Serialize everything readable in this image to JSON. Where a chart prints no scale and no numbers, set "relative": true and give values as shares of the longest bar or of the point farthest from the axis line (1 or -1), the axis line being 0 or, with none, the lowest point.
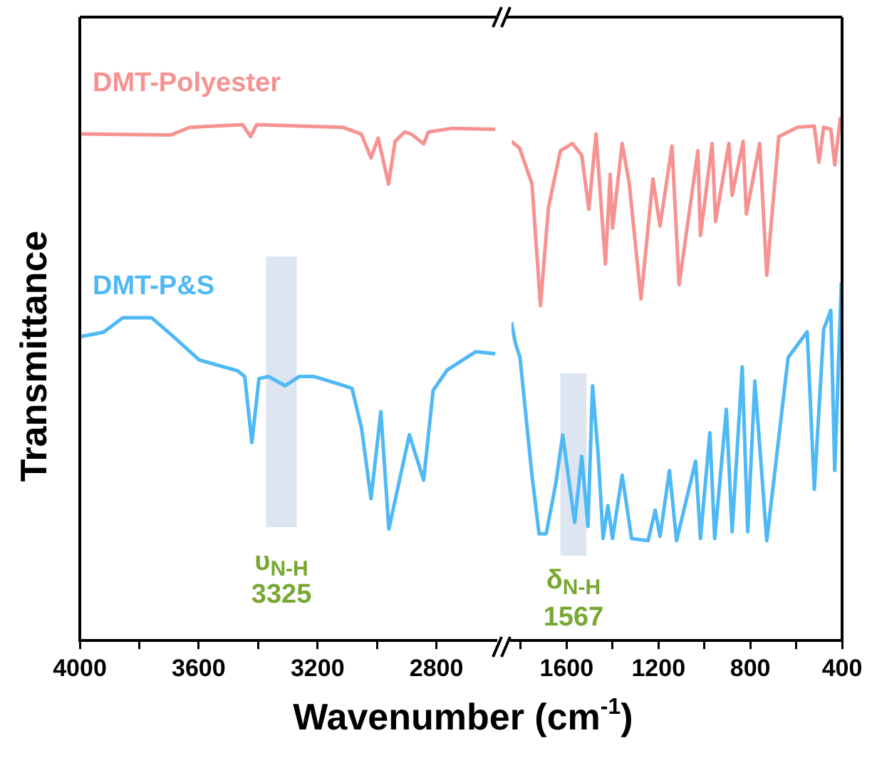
{
  "chart_data": [
    {
      "type": "line",
      "relative": true,
      "ylabel": "Transmittance",
      "xlabel": "Wavenumber (cm$^{-1}$)",
      "xlim": [
        4000,
        2600
      ],
      "xticks": [
        4000,
        {
          "value": 3800,
          "label": null
        },
        3600,
        {
          "value": 3400,
          "label": null
        },
        3200,
        {
          "value": 3000,
          "label": null
        },
        2800
      ],
      "series": [
        {
          "name": "DMT-Polyester",
          "color": "#f79292",
          "x": [
            4000,
            3695,
            3630,
            3452,
            3425,
            3405,
            3116,
            3053,
            3020,
            2996,
            2961,
            2939,
            2907,
            2885,
            2843,
            2827,
            2747,
            2602
          ],
          "values": [
            0.982,
            0.98,
            0.995,
            1,
            0.977,
            1,
            0.995,
            0.982,
            0.936,
            0.974,
            0.885,
            0.968,
            0.986,
            0.982,
            0.963,
            0.986,
            0.993,
            0.991
          ]
        },
        {
          "name": "DMT-P&S",
          "color": "#4fb9f5",
          "x": [
            4000,
            3920,
            3855,
            3759,
            3694,
            3598,
            3469,
            3445,
            3421,
            3397,
            3365,
            3309,
            3261,
            3213,
            3132,
            3084,
            3052,
            3020,
            2987,
            2960,
            2891,
            2843,
            2811,
            2763,
            2667,
            2602
          ],
          "values": [
            0.589,
            0.598,
            0.626,
            0.626,
            0.594,
            0.544,
            0.523,
            0.512,
            0.384,
            0.508,
            0.512,
            0.494,
            0.512,
            0.512,
            0.498,
            0.489,
            0.412,
            0.275,
            0.444,
            0.216,
            0.399,
            0.311,
            0.485,
            0.525,
            0.56,
            0.556
          ]
        }
      ],
      "bands": [
        {
          "axis": "x",
          "from": 3373,
          "to": 3270,
          "color": "#dde5f1"
        }
      ],
      "annotations": [
        "υ$_{N-H}$",
        "3325"
      ]
    },
    {
      "type": "line",
      "relative": true,
      "xlim": [
        1840,
        400
      ],
      "xticks": [
        {
          "value": 1800,
          "label": null
        },
        1600,
        {
          "value": 1400,
          "label": null
        },
        1200,
        {
          "value": 1000,
          "label": null
        },
        800,
        {
          "value": 600,
          "label": null
        },
        400
      ],
      "series": [
        {
          "color": "#f79292",
          "x": [
            1840,
            1805,
            1751,
            1714,
            1679,
            1627,
            1575,
            1534,
            1503,
            1472,
            1431,
            1410,
            1400,
            1358,
            1327,
            1276,
            1224,
            1193,
            1141,
            1110,
            1028,
            1017,
            966,
            951,
            893,
            879,
            831,
            817,
            759,
            728,
            676,
            593,
            521,
            501,
            480,
            449,
            432,
            407
          ],
          "values": [
            0.954,
            0.941,
            0.873,
            0.64,
            0.828,
            0.936,
            0.95,
            0.927,
            0.824,
            0.968,
            0.72,
            0.891,
            0.788,
            0.95,
            0.873,
            0.653,
            0.882,
            0.792,
            0.945,
            0.68,
            0.936,
            0.774,
            0.95,
            0.801,
            0.95,
            0.851,
            0.954,
            0.815,
            0.95,
            0.698,
            0.963,
            0.981,
            0.983,
            0.914,
            0.981,
            0.977,
            0.909,
            1
          ]
        },
        {
          "color": "#4fb9f5",
          "x": [
            1840,
            1823,
            1803,
            1751,
            1720,
            1689,
            1648,
            1617,
            1565,
            1534,
            1507,
            1487,
            1462,
            1441,
            1420,
            1400,
            1358,
            1317,
            1245,
            1214,
            1193,
            1152,
            1121,
            1038,
            1017,
            976,
            955,
            904,
            879,
            835,
            811,
            780,
            728,
            635,
            552,
            521,
            480,
            449,
            432,
            403
          ],
          "values": [
            0.608,
            0.568,
            0.541,
            0.316,
            0.204,
            0.204,
            0.298,
            0.393,
            0.226,
            0.352,
            0.218,
            0.487,
            0.352,
            0.195,
            0.258,
            0.195,
            0.316,
            0.195,
            0.191,
            0.249,
            0.199,
            0.325,
            0.191,
            0.343,
            0.195,
            0.397,
            0.195,
            0.442,
            0.208,
            0.523,
            0.208,
            0.496,
            0.191,
            0.541,
            0.59,
            0.289,
            0.595,
            0.631,
            0.325,
            0.685
          ]
        }
      ],
      "bands": [
        {
          "axis": "x",
          "from": 1627,
          "to": 1513,
          "color": "#dde5f1"
        }
      ],
      "annotations": [
        "δ$_{N-H}$",
        "1567"
      ]
    }
  ]
}
